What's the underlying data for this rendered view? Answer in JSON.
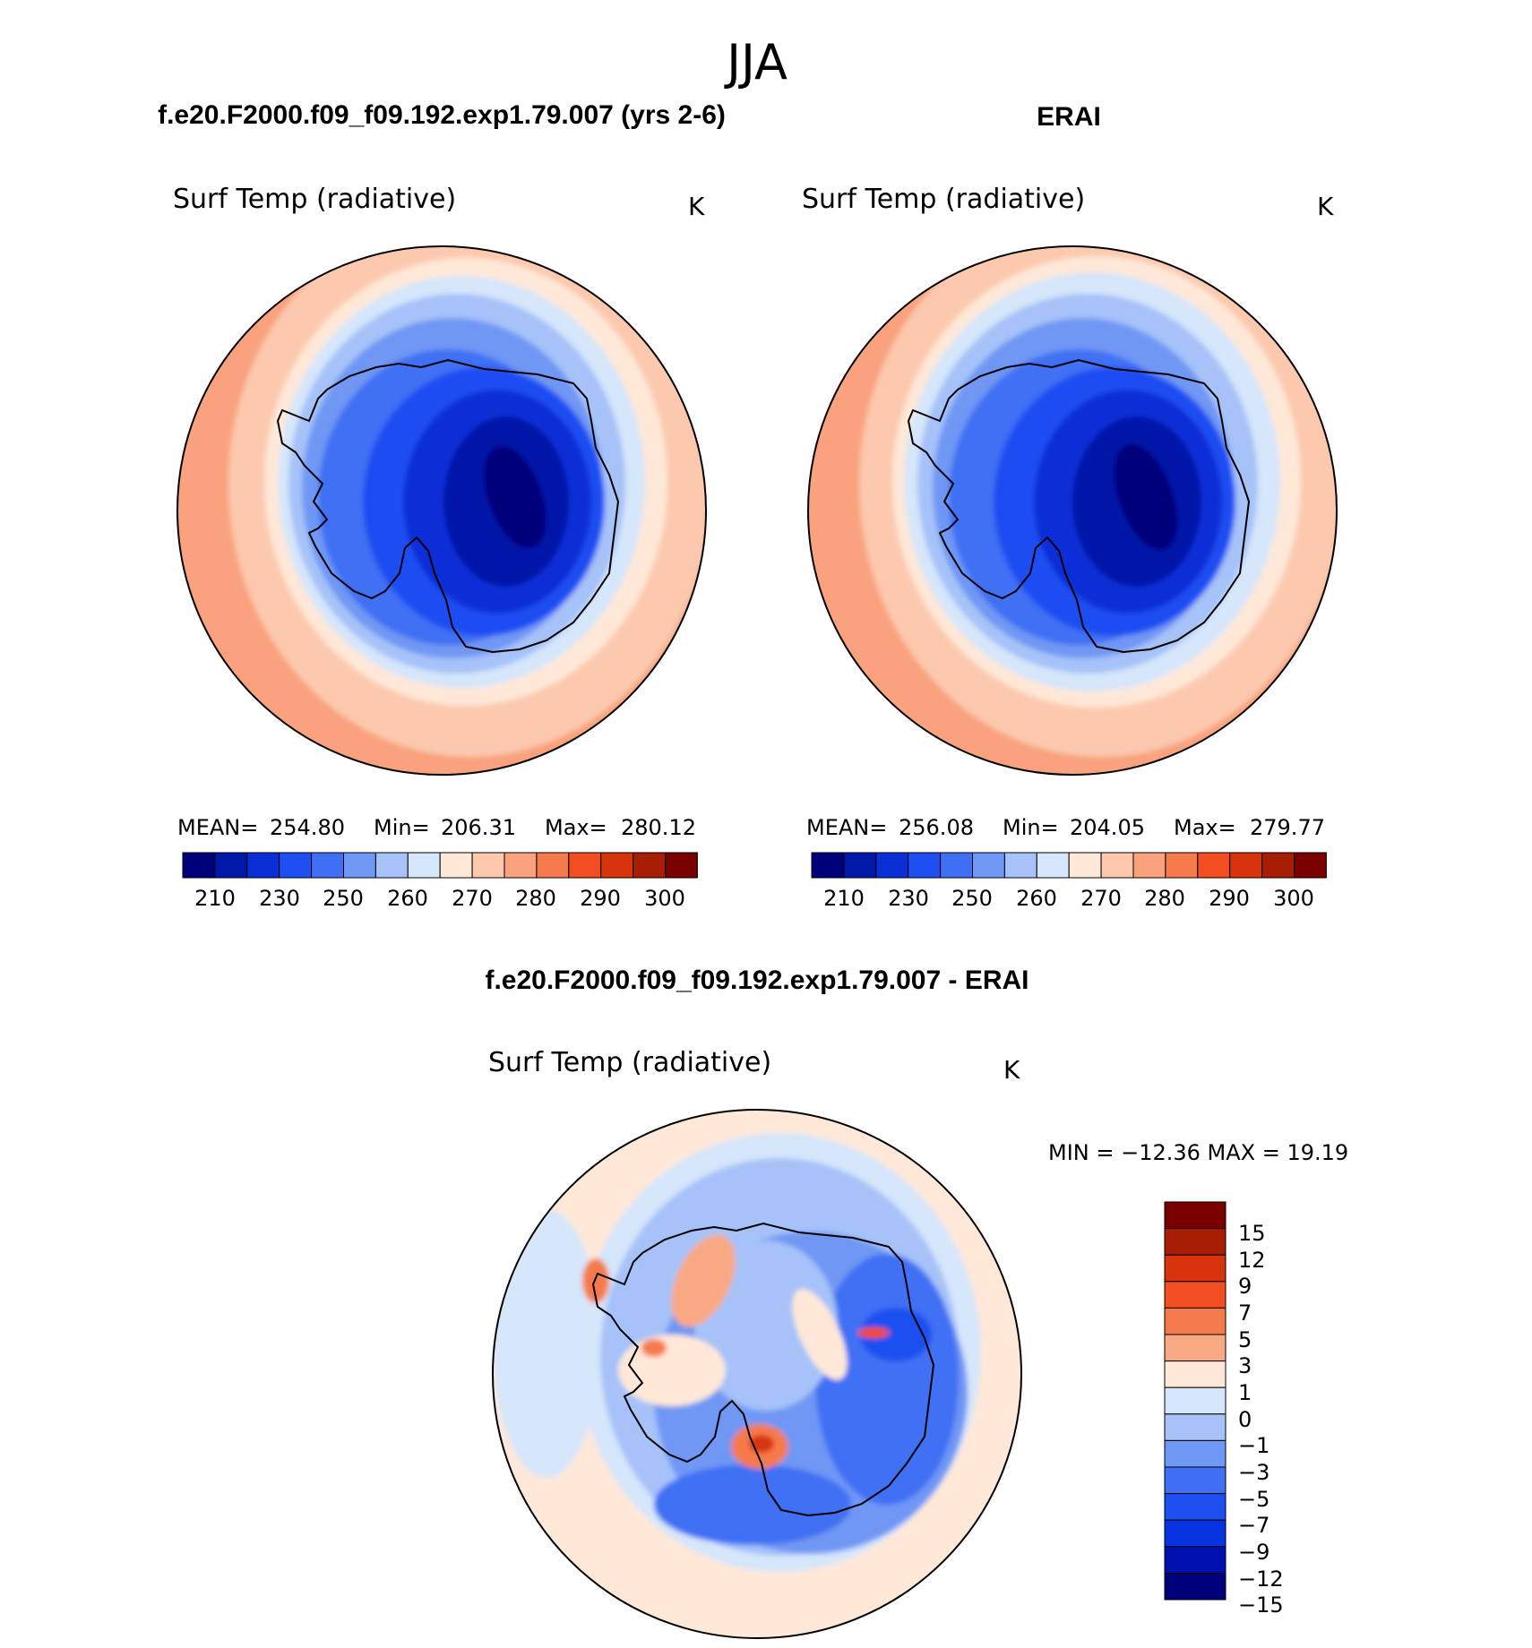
{
  "page_title": "JJA",
  "colors": {
    "seq_palette": [
      "#00007a",
      "#0018a8",
      "#0b2fd6",
      "#1f4ef2",
      "#3f6ff4",
      "#6f97f4",
      "#a6c2f8",
      "#d6e6fb",
      "#ffe8d8",
      "#fcc9ae",
      "#f9a27d",
      "#f57a4c",
      "#f24e22",
      "#d8340c",
      "#a81e04",
      "#7a0000"
    ],
    "diff_palette": [
      "#00007a",
      "#0011b0",
      "#0734e0",
      "#1e4ff0",
      "#3f6ff4",
      "#6f97f4",
      "#a6c2f8",
      "#d6e6fb",
      "#ffe8d8",
      "#f9a884",
      "#f57a4c",
      "#f24e22",
      "#d8340c",
      "#a81e04",
      "#7a0000"
    ]
  },
  "panels": [
    {
      "title": "f.e20.F2000.f09_f09.192.exp1.79.007 (yrs 2-6)",
      "variable": "Surf Temp (radiative)",
      "units": "K",
      "stats": {
        "mean_label": "MEAN=",
        "mean": "254.80",
        "min_label": "Min=",
        "min": "206.31",
        "max_label": "Max=",
        "max": "280.12"
      },
      "colorbar_labels": [
        "210",
        "230",
        "250",
        "260",
        "270",
        "280",
        "290",
        "300"
      ]
    },
    {
      "title": "ERAI",
      "variable": "Surf Temp (radiative)",
      "units": "K",
      "stats": {
        "mean_label": "MEAN=",
        "mean": "256.08",
        "min_label": "Min=",
        "min": "204.05",
        "max_label": "Max=",
        "max": "279.77"
      },
      "colorbar_labels": [
        "210",
        "230",
        "250",
        "260",
        "270",
        "280",
        "290",
        "300"
      ]
    },
    {
      "title": "f.e20.F2000.f09_f09.192.exp1.79.007 - ERAI",
      "variable": "Surf Temp (radiative)",
      "units": "K",
      "minmax_text": "MIN = −12.36 MAX =   19.19",
      "colorbar_labels": [
        "15",
        "12",
        "9",
        "7",
        "5",
        "3",
        "1",
        "0",
        "−1",
        "−3",
        "−5",
        "−7",
        "−9",
        "−12",
        "−15"
      ]
    }
  ],
  "chart_data": [
    {
      "type": "heatmap",
      "projection": "south polar stereographic",
      "title": "f.e20.F2000.f09_f09.192.exp1.79.007 (yrs 2-6)",
      "variable": "Surf Temp (radiative)",
      "units": "K",
      "mean": 254.8,
      "min": 206.31,
      "max": 280.12,
      "contour_levels": [
        210,
        220,
        230,
        240,
        250,
        255,
        260,
        265,
        270,
        275,
        280,
        285,
        290,
        295,
        300
      ],
      "colorbar_tick_labels": [
        210,
        230,
        250,
        260,
        270,
        280,
        290,
        300
      ]
    },
    {
      "type": "heatmap",
      "projection": "south polar stereographic",
      "title": "ERAI",
      "variable": "Surf Temp (radiative)",
      "units": "K",
      "mean": 256.08,
      "min": 204.05,
      "max": 279.77,
      "contour_levels": [
        210,
        220,
        230,
        240,
        250,
        255,
        260,
        265,
        270,
        275,
        280,
        285,
        290,
        295,
        300
      ],
      "colorbar_tick_labels": [
        210,
        230,
        250,
        260,
        270,
        280,
        290,
        300
      ]
    },
    {
      "type": "heatmap",
      "projection": "south polar stereographic",
      "title": "f.e20.F2000.f09_f09.192.exp1.79.007 - ERAI",
      "variable": "Surf Temp (radiative)",
      "units": "K",
      "min": -12.36,
      "max": 19.19,
      "contour_levels": [
        -15,
        -12,
        -9,
        -7,
        -5,
        -3,
        -1,
        0,
        1,
        3,
        5,
        7,
        9,
        12,
        15
      ],
      "colorbar_tick_labels": [
        15,
        12,
        9,
        7,
        5,
        3,
        1,
        0,
        -1,
        -3,
        -5,
        -7,
        -9,
        -12,
        -15
      ]
    }
  ]
}
